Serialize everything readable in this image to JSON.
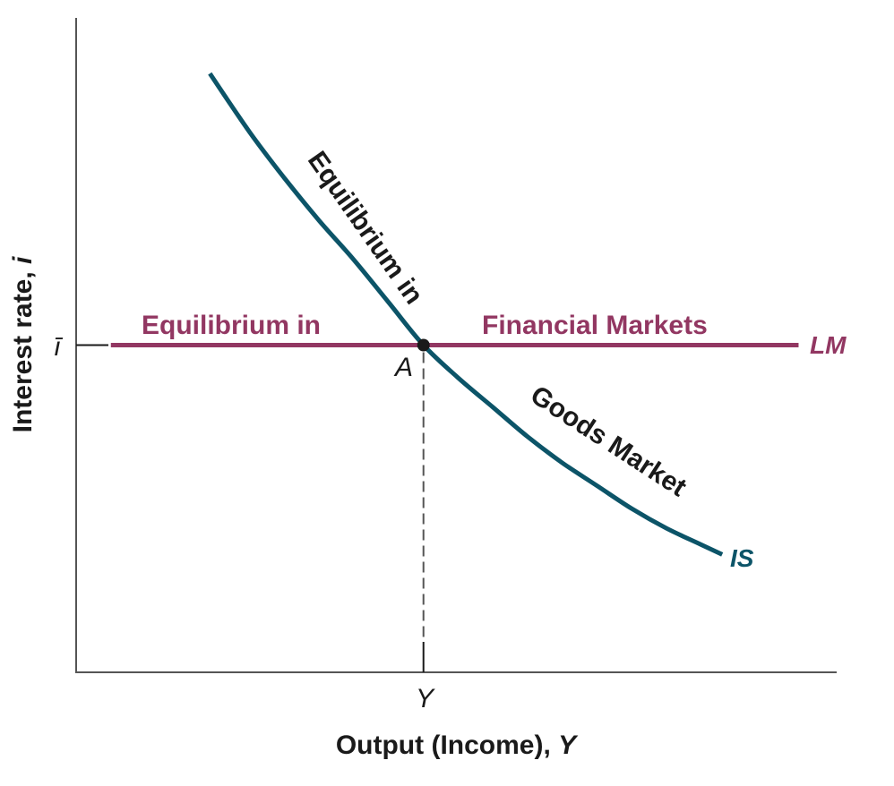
{
  "chart_data": {
    "type": "line",
    "title": "",
    "xlabel": "Output (Income),",
    "xlabel_var": "Y",
    "ylabel": "Interest rate,",
    "ylabel_var": "i",
    "x_ticks": [
      {
        "value": 1,
        "label": "Y"
      }
    ],
    "y_ticks": [
      {
        "value": 1,
        "label": "ī"
      }
    ],
    "xlim": [
      0,
      2.2
    ],
    "ylim": [
      0,
      2.0
    ],
    "grid": false,
    "legend": "none",
    "series": [
      {
        "name": "IS",
        "color": "#0c5468",
        "x": [
          0.385,
          0.5,
          0.6,
          0.7,
          0.8,
          0.9,
          1.0,
          1.1,
          1.2,
          1.3,
          1.4,
          1.5,
          1.6,
          1.7,
          1.8,
          1.86
        ],
        "y": [
          1.83,
          1.65,
          1.51,
          1.38,
          1.26,
          1.13,
          1.0,
          0.9,
          0.81,
          0.72,
          0.64,
          0.57,
          0.5,
          0.44,
          0.39,
          0.36
        ]
      },
      {
        "name": "LM",
        "color": "#923762",
        "x": [
          0.1,
          2.08
        ],
        "y": [
          1.0,
          1.0
        ]
      }
    ],
    "equilibrium": {
      "label": "A",
      "x": 1.0,
      "y": 1.0
    },
    "annotations": {
      "goods_market_1": "Equilibrium in",
      "goods_market_2": "Goods Market",
      "financial_markets_1": "Equilibrium in",
      "financial_markets_2": "Financial Markets"
    },
    "colors": {
      "is_curve": "#0c5468",
      "lm_curve": "#923762",
      "axis": "#555555",
      "text": "#1a1a1a"
    }
  }
}
